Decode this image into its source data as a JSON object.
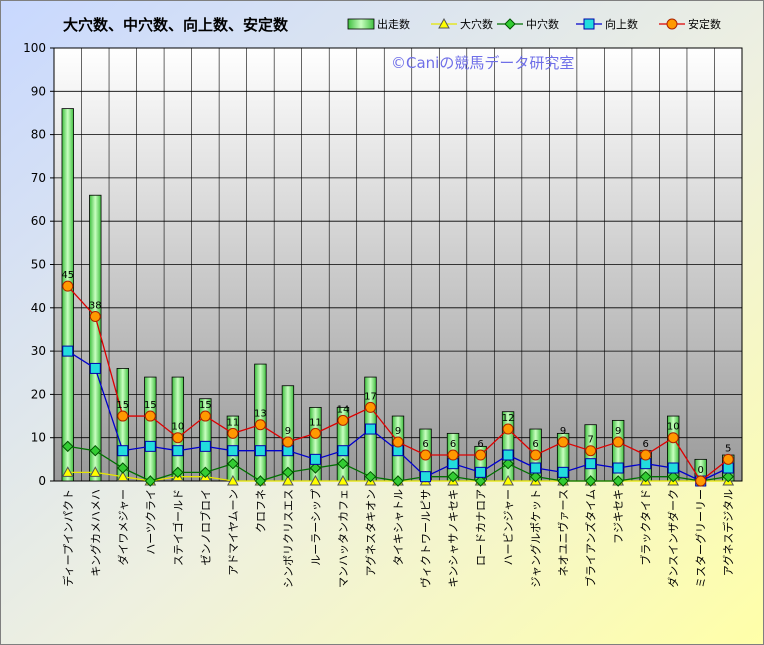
{
  "chart_data": {
    "type": "bar",
    "title": "大穴数、中穴数、向上数、安定数",
    "watermark": "©Caniの競馬データ研究室",
    "ylim": [
      0,
      100
    ],
    "yticks": [
      0,
      10,
      20,
      30,
      40,
      50,
      60,
      70,
      80,
      90,
      100
    ],
    "grid": true,
    "legend_position": "top-right",
    "categories": [
      "ディープインパクト",
      "キングカメハメハ",
      "ダイワメジャー",
      "ハーツクライ",
      "ステイゴールド",
      "ゼンノロブロイ",
      "アドマイヤムーン",
      "クロフネ",
      "シンボリクリスエス",
      "ルーラーシップ",
      "マンハッタンカフェ",
      "アグネスタキオン",
      "タイキシャトル",
      "ヴィクトワールピサ",
      "キンシャサノキセキ",
      "ロードカナロア",
      "ハービンジャー",
      "ジャングルポケット",
      "ネオユニヴァース",
      "ブライアンズタイム",
      "フジキセキ",
      "ブラックタイド",
      "ダンスインザダーク",
      "ミスターグリーリー",
      "アグネスデジタル"
    ],
    "series": [
      {
        "name": "出走数",
        "type": "bar",
        "color": "#66dd66",
        "values": [
          86,
          66,
          26,
          24,
          24,
          19,
          15,
          27,
          22,
          17,
          17,
          24,
          15,
          12,
          11,
          8,
          16,
          12,
          11,
          13,
          14,
          7,
          15,
          5,
          6
        ]
      },
      {
        "name": "大穴数",
        "type": "line",
        "color": "#e6e600",
        "marker": "triangle",
        "values": [
          2,
          2,
          1,
          0,
          1,
          1,
          0,
          0,
          0,
          0,
          0,
          0,
          0,
          0,
          0,
          0,
          0,
          0,
          0,
          0,
          0,
          0,
          0,
          0,
          0
        ]
      },
      {
        "name": "中穴数",
        "type": "line",
        "color": "#007000",
        "marker": "diamond",
        "values": [
          8,
          7,
          3,
          0,
          2,
          2,
          4,
          0,
          2,
          3,
          4,
          1,
          0,
          1,
          1,
          0,
          4,
          1,
          0,
          0,
          0,
          1,
          1,
          0,
          1
        ]
      },
      {
        "name": "向上数",
        "type": "line",
        "color": "#0000cc",
        "marker": "square",
        "values": [
          30,
          26,
          7,
          8,
          7,
          8,
          7,
          7,
          7,
          5,
          7,
          12,
          7,
          1,
          4,
          2,
          6,
          3,
          2,
          4,
          3,
          4,
          3,
          0,
          3
        ]
      },
      {
        "name": "安定数",
        "type": "line",
        "color": "#dd0000",
        "marker": "circle",
        "labeled": true,
        "values": [
          45,
          38,
          15,
          15,
          10,
          15,
          11,
          13,
          9,
          11,
          14,
          17,
          9,
          6,
          6,
          6,
          12,
          6,
          9,
          7,
          9,
          6,
          10,
          0,
          5
        ]
      }
    ]
  }
}
